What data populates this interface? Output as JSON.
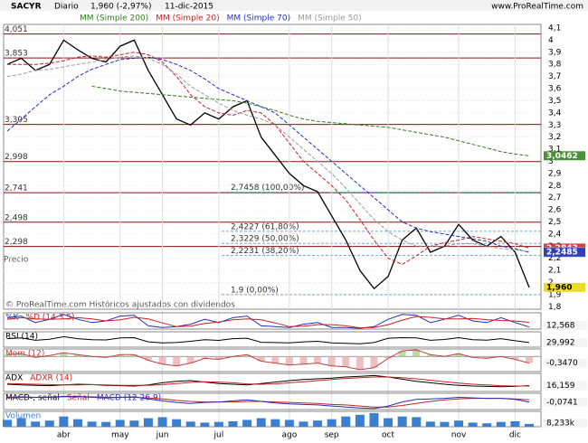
{
  "header": {
    "symbol": "SACYR",
    "period": "Diario",
    "price": "1,960 (-2,97%)",
    "date": "11-dic-2015",
    "website": "www.ProRealTime.com",
    "source": "© ProRealTime.com  Históricos ajustados con dividendos",
    "profile_label": "Precio"
  },
  "chart_data": [
    {
      "type": "line",
      "categories": [
        null,
        null,
        null,
        null,
        "abr",
        null,
        null,
        null,
        "may",
        null,
        null,
        "jun",
        null,
        null,
        null,
        "jul",
        null,
        null,
        null,
        null,
        "ago",
        null,
        null,
        "sep",
        null,
        null,
        null,
        "oct",
        null,
        null,
        null,
        null,
        "nov",
        null,
        null,
        null,
        "dic",
        null
      ],
      "ylim": [
        1.78,
        4.13
      ],
      "yticks": [
        {
          "value": 4.1,
          "label": "4,1"
        },
        4,
        {
          "value": 3.9,
          "label": "3,9"
        },
        {
          "value": 3.8,
          "label": "3,8"
        },
        {
          "value": 3.7,
          "label": "3,7"
        },
        {
          "value": 3.6,
          "label": "3,6"
        },
        {
          "value": 3.5,
          "label": "3,5"
        },
        {
          "value": 3.4,
          "label": "3,4"
        },
        {
          "value": 3.3,
          "label": "3,3"
        },
        {
          "value": 3.2,
          "label": "3,2"
        },
        {
          "value": 3.1,
          "label": "3,1"
        },
        3,
        {
          "value": 2.9,
          "label": "2,9"
        },
        {
          "value": 2.8,
          "label": "2,8"
        },
        {
          "value": 2.7,
          "label": "2,7"
        },
        {
          "value": 2.6,
          "label": "2,6"
        },
        {
          "value": 2.5,
          "label": "2,5"
        },
        {
          "value": 2.4,
          "label": "2,4"
        },
        {
          "value": 2.3,
          "label": "2,3"
        },
        {
          "value": 2.2,
          "label": "2,2"
        },
        {
          "value": 2.1,
          "label": "2,1"
        },
        2,
        {
          "value": 1.9,
          "label": "1,9"
        },
        {
          "value": 1.8,
          "label": "1,8"
        }
      ],
      "series": [
        {
          "name": "SACYR",
          "color": "#000000",
          "values": [
            3.8,
            3.85,
            3.75,
            3.8,
            4.0,
            3.92,
            3.85,
            3.82,
            3.95,
            4.0,
            3.75,
            3.55,
            3.35,
            3.3,
            3.4,
            3.35,
            3.45,
            3.5,
            3.2,
            3.05,
            2.9,
            2.8,
            2.75,
            2.55,
            2.35,
            2.1,
            1.95,
            2.05,
            2.35,
            2.45,
            2.25,
            2.3,
            2.48,
            2.35,
            2.3,
            2.38,
            2.25,
            1.96
          ]
        },
        {
          "name": "MM (Simple 200)",
          "color": "#2e7d1a",
          "dash": "4 2",
          "values": [
            null,
            null,
            null,
            null,
            null,
            null,
            3.62,
            3.6,
            3.58,
            3.57,
            3.56,
            3.55,
            3.54,
            3.53,
            3.52,
            3.51,
            3.5,
            3.48,
            3.45,
            3.42,
            3.38,
            3.35,
            3.33,
            3.32,
            3.31,
            3.3,
            3.29,
            3.28,
            3.26,
            3.24,
            3.22,
            3.2,
            3.17,
            3.14,
            3.11,
            3.08,
            3.06,
            3.0462
          ]
        },
        {
          "name": "MM (Simple 20)",
          "color": "#cc1f1f",
          "dash": "4 2",
          "values": [
            3.8,
            3.8,
            3.8,
            3.81,
            3.83,
            3.86,
            3.87,
            3.86,
            3.88,
            3.9,
            3.88,
            3.82,
            3.7,
            3.55,
            3.45,
            3.4,
            3.38,
            3.42,
            3.4,
            3.3,
            3.15,
            3.0,
            2.9,
            2.8,
            2.68,
            2.52,
            2.35,
            2.2,
            2.15,
            2.22,
            2.3,
            2.33,
            2.35,
            2.38,
            2.36,
            2.34,
            2.32,
            2.2843
          ]
        },
        {
          "name": "MM (Simple 70)",
          "color": "#1f2fc0",
          "dash": "4 2",
          "values": [
            3.25,
            3.35,
            3.45,
            3.55,
            3.62,
            3.7,
            3.76,
            3.8,
            3.84,
            3.85,
            3.86,
            3.84,
            3.8,
            3.75,
            3.68,
            3.6,
            3.55,
            3.5,
            3.45,
            3.4,
            3.3,
            3.2,
            3.1,
            3.0,
            2.9,
            2.8,
            2.7,
            2.6,
            2.5,
            2.45,
            2.42,
            2.4,
            2.38,
            2.36,
            2.34,
            2.3,
            2.28,
            2.2485
          ]
        },
        {
          "name": "MM (Simple 50)",
          "color": "#9a9a9a",
          "dash": "4 2",
          "values": [
            3.7,
            3.72,
            3.75,
            3.76,
            3.78,
            3.8,
            3.82,
            3.84,
            3.86,
            3.87,
            3.85,
            3.8,
            3.72,
            3.62,
            3.55,
            3.48,
            3.42,
            3.38,
            3.35,
            3.3,
            3.2,
            3.1,
            3.0,
            2.9,
            2.78,
            2.65,
            2.52,
            2.42,
            2.35,
            2.3,
            2.3,
            2.3,
            2.32,
            2.32,
            2.3,
            2.28,
            2.27,
            2.2562
          ]
        }
      ],
      "annotations": [
        {
          "value": 3.0462,
          "label": "3,0462",
          "color": "#2e7d1a"
        },
        {
          "value": 2.2843,
          "label": "2,2843",
          "color": "#cc1f1f"
        },
        {
          "value": 2.2562,
          "label": "2,2562",
          "color": "#9a9a9a"
        },
        {
          "value": 2.2485,
          "label": "2,2485",
          "color": "#1f2fc0"
        },
        {
          "value": 1.96,
          "label": "1,960",
          "color": "#e8d800"
        }
      ],
      "levels": [
        {
          "value": 4.051,
          "label": "4,051"
        },
        {
          "value": 3.853,
          "label": "3,853"
        },
        {
          "value": 3.305,
          "label": "3,305"
        },
        {
          "value": 2.998,
          "label": "2,998"
        },
        {
          "value": 2.741,
          "label": "2,741"
        },
        {
          "value": 2.498,
          "label": "2,498"
        },
        {
          "value": 2.298,
          "label": "2,298"
        }
      ],
      "fibonacci": [
        {
          "value": 2.7458,
          "label": "2,7458 (100,00%)"
        },
        {
          "value": 2.4227,
          "label": "2,4227 (61,80%)"
        },
        {
          "value": 2.3229,
          "label": "2,3229 (50,00%)"
        },
        {
          "value": 2.2231,
          "label": "2,2231 (38,20%)"
        },
        {
          "value": 1.9,
          "label": "1,9 (0,00%)"
        }
      ]
    },
    {
      "type": "line",
      "ylim": [
        0,
        100
      ],
      "last": {
        "value": 12.568,
        "label": "12,568"
      },
      "series": [
        {
          "name": "%K",
          "color": "#1f2fc0",
          "values": [
            70,
            80,
            40,
            60,
            90,
            60,
            40,
            50,
            80,
            85,
            20,
            10,
            15,
            30,
            60,
            40,
            70,
            80,
            20,
            15,
            10,
            30,
            40,
            10,
            10,
            5,
            15,
            60,
            90,
            85,
            40,
            60,
            85,
            50,
            40,
            70,
            40,
            12.568
          ]
        },
        {
          "name": "%D (14 3 5)",
          "color": "#cc1f1f",
          "values": [
            60,
            70,
            63,
            60,
            63,
            70,
            63,
            50,
            57,
            72,
            62,
            38,
            15,
            18,
            35,
            43,
            57,
            63,
            57,
            38,
            15,
            18,
            27,
            27,
            20,
            8,
            10,
            27,
            55,
            78,
            72,
            62,
            62,
            65,
            58,
            53,
            50,
            41
          ]
        }
      ]
    },
    {
      "type": "line",
      "ylim": [
        0,
        100
      ],
      "last": {
        "value": 29.992,
        "label": "29,992"
      },
      "series": [
        {
          "name": "RSI (14)",
          "color": "#000000",
          "values": [
            55,
            60,
            45,
            52,
            68,
            55,
            48,
            47,
            60,
            62,
            35,
            28,
            30,
            38,
            48,
            44,
            55,
            58,
            32,
            30,
            28,
            35,
            38,
            28,
            25,
            22,
            30,
            58,
            62,
            60,
            45,
            50,
            62,
            48,
            46,
            55,
            42,
            29.992
          ]
        }
      ]
    },
    {
      "type": "area",
      "ylim": [
        -0.8,
        0.4
      ],
      "last": {
        "value": -0.347,
        "label": "-0,3470"
      },
      "series": [
        {
          "name": "Mom (12)",
          "color": "#c04040",
          "values": [
            0.1,
            0.15,
            -0.05,
            0.05,
            0.2,
            0.1,
            0,
            -0.05,
            0.1,
            0.1,
            -0.2,
            -0.4,
            -0.5,
            -0.35,
            -0.1,
            -0.15,
            0,
            0.1,
            -0.25,
            -0.35,
            -0.45,
            -0.4,
            -0.35,
            -0.5,
            -0.55,
            -0.7,
            -0.6,
            -0.1,
            0.3,
            0.35,
            0.1,
            0,
            0.15,
            -0.05,
            -0.1,
            0,
            -0.15,
            -0.347
          ]
        }
      ]
    },
    {
      "type": "line",
      "ylim": [
        0,
        50
      ],
      "last": {
        "value": 16.159,
        "label": "16,159"
      },
      "series": [
        {
          "name": "ADX",
          "color": "#000000",
          "values": [
            20,
            18,
            17,
            16,
            18,
            20,
            19,
            17,
            16,
            15,
            18,
            24,
            28,
            30,
            26,
            22,
            20,
            18,
            22,
            26,
            30,
            33,
            35,
            37,
            40,
            42,
            44,
            40,
            34,
            28,
            24,
            20,
            17,
            15,
            14,
            13,
            14,
            16.159
          ]
        },
        {
          "name": "ADXR (14)",
          "color": "#cc1f1f",
          "values": [
            22,
            21,
            20,
            19,
            18,
            18,
            19,
            18,
            17,
            17,
            17,
            19,
            22,
            25,
            27,
            26,
            24,
            21,
            20,
            21,
            24,
            27,
            30,
            33,
            36,
            38,
            40,
            40,
            38,
            35,
            31,
            27,
            23,
            20,
            18,
            16,
            15,
            15
          ]
        }
      ]
    },
    {
      "type": "line",
      "title": "MACD-, señal",
      "ylim": [
        -0.22,
        0.1
      ],
      "last": {
        "value": -0.0741,
        "label": "-0,0741"
      },
      "series": [
        {
          "name": "Señal",
          "color": "#cc1f1f",
          "values": [
            0.01,
            0.02,
            0.02,
            0.02,
            0.03,
            0.03,
            0.03,
            0.02,
            0.02,
            0.02,
            0.01,
            -0.01,
            -0.04,
            -0.06,
            -0.07,
            -0.07,
            -0.07,
            -0.06,
            -0.06,
            -0.07,
            -0.08,
            -0.09,
            -0.1,
            -0.12,
            -0.13,
            -0.15,
            -0.17,
            -0.17,
            -0.14,
            -0.1,
            -0.06,
            -0.03,
            -0.01,
            0,
            0,
            0,
            -0.01,
            -0.03
          ]
        },
        {
          "name": "MACD (12 26 9)",
          "color": "#1f2fc0",
          "values": [
            0.02,
            0.03,
            0.02,
            0.02,
            0.04,
            0.04,
            0.02,
            0.01,
            0.02,
            0.03,
            -0.01,
            -0.05,
            -0.08,
            -0.1,
            -0.08,
            -0.07,
            -0.05,
            -0.03,
            -0.06,
            -0.09,
            -0.11,
            -0.12,
            -0.13,
            -0.15,
            -0.17,
            -0.19,
            -0.2,
            -0.15,
            -0.07,
            -0.02,
            -0.01,
            0,
            0.02,
            0.01,
            0,
            0,
            -0.02,
            -0.0741
          ]
        }
      ]
    },
    {
      "type": "bar",
      "ylim": [
        0,
        45000
      ],
      "last": {
        "value": 8233,
        "label": "8,233k"
      },
      "series": [
        {
          "name": "Volumen",
          "color": "#3a7fd0",
          "values": [
            20000,
            25000,
            15000,
            18000,
            30000,
            22000,
            15000,
            14000,
            20000,
            18000,
            25000,
            28000,
            22000,
            15000,
            12000,
            14000,
            16000,
            20000,
            25000,
            22000,
            20000,
            15000,
            18000,
            22000,
            30000,
            35000,
            40000,
            25000,
            30000,
            28000,
            15000,
            14000,
            18000,
            12000,
            10000,
            14000,
            16000,
            8233
          ]
        }
      ]
    }
  ]
}
